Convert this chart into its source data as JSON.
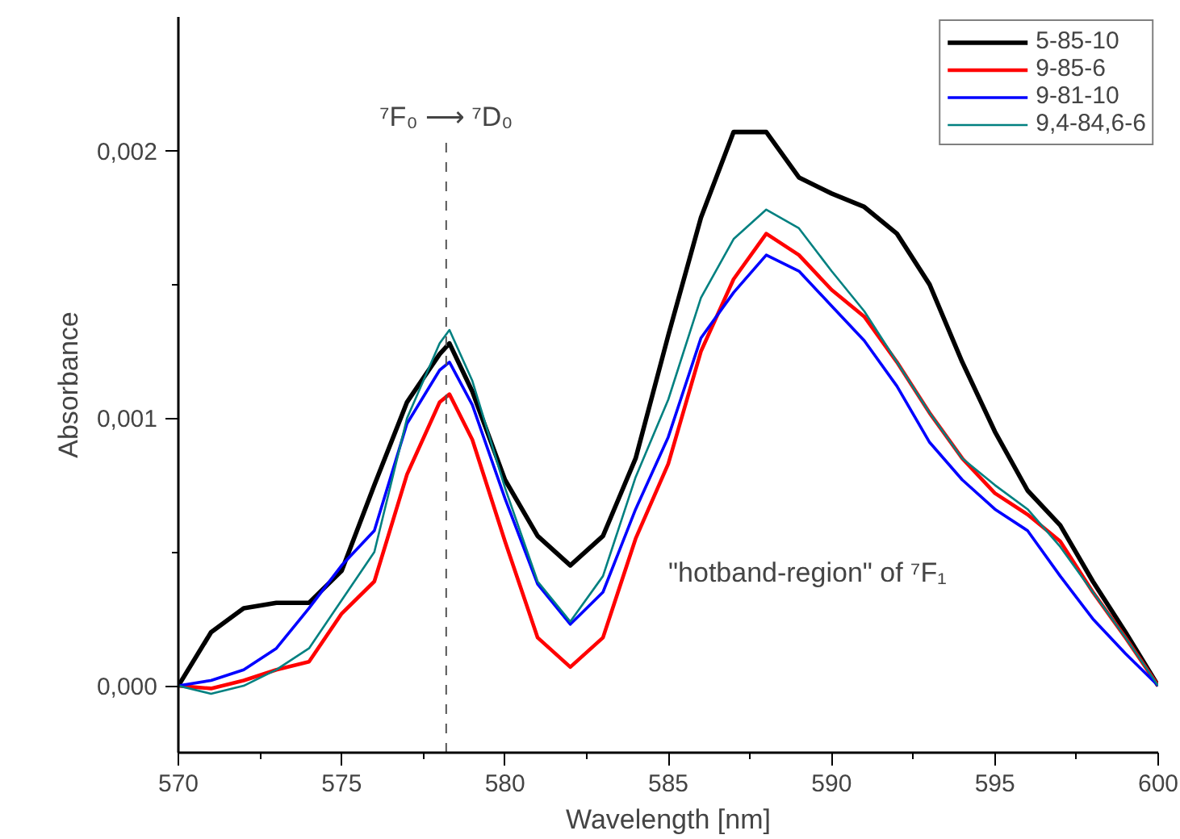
{
  "chart_data": {
    "type": "line",
    "xlabel": "Wavelength [nm]",
    "ylabel": "Absorbance",
    "x": [
      570,
      571,
      572,
      573,
      574,
      575,
      576,
      577,
      578,
      578.3,
      579,
      580,
      581,
      582,
      583,
      584,
      585,
      586,
      587,
      588,
      589,
      590,
      591,
      592,
      593,
      594,
      595,
      596,
      597,
      598,
      599,
      600
    ],
    "series": [
      {
        "name": "5-85-10",
        "color": "#000000",
        "values": [
          0,
          0.0002,
          0.00029,
          0.00031,
          0.00031,
          0.00043,
          0.00075,
          0.00106,
          0.00124,
          0.00128,
          0.0011,
          0.00077,
          0.00056,
          0.00045,
          0.00056,
          0.00085,
          0.00131,
          0.00175,
          0.00207,
          0.00207,
          0.0019,
          0.00184,
          0.00179,
          0.00169,
          0.0015,
          0.00121,
          0.00095,
          0.00073,
          0.0006,
          0.00039,
          0.0002,
          0
        ]
      },
      {
        "name": "9-85-6",
        "color": "#ff0000",
        "values": [
          0,
          -1e-05,
          2e-05,
          6e-05,
          9e-05,
          0.00027,
          0.00039,
          0.00079,
          0.00106,
          0.00109,
          0.00092,
          0.00054,
          0.00018,
          7e-05,
          0.00018,
          0.00055,
          0.00083,
          0.00125,
          0.00152,
          0.00169,
          0.00161,
          0.00148,
          0.00138,
          0.00121,
          0.00102,
          0.00085,
          0.00072,
          0.00064,
          0.00054,
          0.00035,
          0.00018,
          0
        ]
      },
      {
        "name": "9-81-10",
        "color": "#0000ff",
        "values": [
          0,
          2e-05,
          6e-05,
          0.00014,
          0.00029,
          0.00045,
          0.00058,
          0.00098,
          0.00118,
          0.00121,
          0.00105,
          0.0007,
          0.00038,
          0.00023,
          0.00035,
          0.00066,
          0.00093,
          0.0013,
          0.00147,
          0.00161,
          0.00155,
          0.00142,
          0.00129,
          0.00112,
          0.00091,
          0.00077,
          0.00066,
          0.00058,
          0.00041,
          0.00025,
          0.00012,
          0
        ]
      },
      {
        "name": "9,4-84,6-6",
        "color": "#008080",
        "values": [
          0,
          -3e-05,
          0,
          6e-05,
          0.00014,
          0.00032,
          0.0005,
          0.001,
          0.00128,
          0.00133,
          0.00114,
          0.00074,
          0.00039,
          0.00024,
          0.00041,
          0.00078,
          0.00107,
          0.00145,
          0.00167,
          0.00178,
          0.00171,
          0.00155,
          0.0014,
          0.00121,
          0.00102,
          0.00085,
          0.00075,
          0.00066,
          0.00052,
          0.00035,
          0.00018,
          0
        ]
      }
    ],
    "xlim": [
      570,
      600
    ],
    "xticks": [
      570,
      575,
      580,
      585,
      590,
      595,
      600
    ],
    "ylim": [
      -0.00025,
      0.0025
    ],
    "yticks": [
      {
        "value": 0,
        "label": "0,000"
      },
      {
        "value": 0.001,
        "label": "0,001"
      },
      {
        "value": 0.002,
        "label": "0,002"
      }
    ],
    "ref_lines": [
      {
        "axis": "x",
        "value": 578.2,
        "label": "⁷F₀ ⟶ ⁷D₀",
        "color": "#555555",
        "line_style": "dashed"
      }
    ],
    "annotations": [
      "\"hotband-region\" of ⁷F₁"
    ],
    "legend": "top right",
    "grid": false,
    "marker": "none",
    "line_style": "solid"
  }
}
